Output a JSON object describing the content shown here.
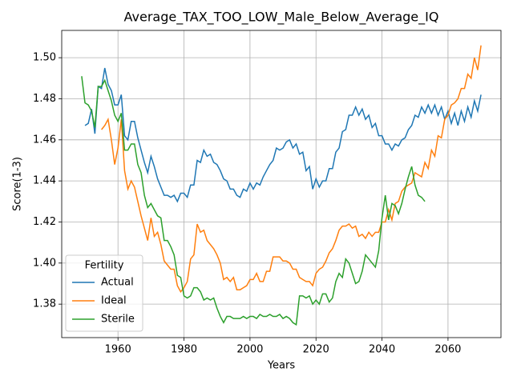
{
  "chart_data": {
    "type": "line",
    "title": "Average_TAX_TOO_LOW_Male_Below_Average_IQ",
    "x_label": "Years",
    "y_label": "Score(1-3)",
    "xlim": [
      1942.95,
      2076.05
    ],
    "ylim": [
      1.3637,
      1.5133
    ],
    "xticks": [
      1960,
      1980,
      2000,
      2020,
      2040,
      2060
    ],
    "yticks": [
      1.38,
      {
        "value": 1.4,
        "label": "1.40"
      },
      1.42,
      1.44,
      1.46,
      1.48,
      {
        "value": 1.5,
        "label": "1.50"
      }
    ],
    "grid": true,
    "legend_title": "Fertility",
    "legend_position": "lower left",
    "series": [
      {
        "name": "Actual",
        "color": "#1f77b4",
        "x": [
          1950,
          1951,
          1952,
          1953,
          1954,
          1955,
          1956,
          1957,
          1958,
          1959,
          1960,
          1961,
          1962,
          1963,
          1964,
          1965,
          1966,
          1967,
          1968,
          1969,
          1970,
          1971,
          1972,
          1973,
          1974,
          1975,
          1976,
          1977,
          1978,
          1979,
          1980,
          1981,
          1982,
          1983,
          1984,
          1985,
          1986,
          1987,
          1988,
          1989,
          1990,
          1991,
          1992,
          1993,
          1994,
          1995,
          1996,
          1997,
          1998,
          1999,
          2000,
          2001,
          2002,
          2003,
          2004,
          2005,
          2006,
          2007,
          2008,
          2009,
          2010,
          2011,
          2012,
          2013,
          2014,
          2015,
          2016,
          2017,
          2018,
          2019,
          2020,
          2021,
          2022,
          2023,
          2024,
          2025,
          2026,
          2027,
          2028,
          2029,
          2030,
          2031,
          2032,
          2033,
          2034,
          2035,
          2036,
          2037,
          2038,
          2039,
          2040,
          2041,
          2042,
          2043,
          2044,
          2045,
          2046,
          2047,
          2048,
          2049,
          2050,
          2051,
          2052,
          2053,
          2054,
          2055,
          2056,
          2057,
          2058,
          2059,
          2060,
          2061,
          2062,
          2063,
          2064,
          2065,
          2066,
          2067,
          2068,
          2069,
          2070
        ],
        "values": [
          1.467,
          1.468,
          1.475,
          1.463,
          1.486,
          1.485,
          1.495,
          1.487,
          1.484,
          1.477,
          1.477,
          1.482,
          1.462,
          1.46,
          1.469,
          1.469,
          1.461,
          1.455,
          1.449,
          1.444,
          1.452,
          1.447,
          1.441,
          1.437,
          1.433,
          1.433,
          1.432,
          1.433,
          1.43,
          1.434,
          1.434,
          1.432,
          1.438,
          1.438,
          1.45,
          1.449,
          1.455,
          1.452,
          1.453,
          1.449,
          1.448,
          1.445,
          1.441,
          1.44,
          1.436,
          1.436,
          1.433,
          1.432,
          1.436,
          1.435,
          1.439,
          1.436,
          1.439,
          1.438,
          1.442,
          1.445,
          1.448,
          1.45,
          1.456,
          1.455,
          1.456,
          1.459,
          1.46,
          1.456,
          1.458,
          1.453,
          1.454,
          1.445,
          1.447,
          1.436,
          1.441,
          1.437,
          1.44,
          1.44,
          1.446,
          1.446,
          1.454,
          1.456,
          1.464,
          1.465,
          1.472,
          1.472,
          1.476,
          1.472,
          1.475,
          1.47,
          1.472,
          1.466,
          1.468,
          1.462,
          1.462,
          1.458,
          1.458,
          1.455,
          1.458,
          1.457,
          1.46,
          1.461,
          1.465,
          1.467,
          1.472,
          1.471,
          1.476,
          1.473,
          1.477,
          1.473,
          1.477,
          1.472,
          1.476,
          1.47,
          1.474,
          1.468,
          1.473,
          1.467,
          1.474,
          1.469,
          1.476,
          1.471,
          1.479,
          1.474,
          1.482
        ]
      },
      {
        "name": "Ideal",
        "color": "#ff7f0e",
        "x": [
          1955,
          1956,
          1957,
          1958,
          1959,
          1960,
          1961,
          1962,
          1963,
          1964,
          1965,
          1966,
          1967,
          1968,
          1969,
          1970,
          1971,
          1972,
          1973,
          1974,
          1975,
          1976,
          1977,
          1978,
          1979,
          1980,
          1981,
          1982,
          1983,
          1984,
          1985,
          1986,
          1987,
          1988,
          1989,
          1990,
          1991,
          1992,
          1993,
          1994,
          1995,
          1996,
          1997,
          1998,
          1999,
          2000,
          2001,
          2002,
          2003,
          2004,
          2005,
          2006,
          2007,
          2008,
          2009,
          2010,
          2011,
          2012,
          2013,
          2014,
          2015,
          2016,
          2017,
          2018,
          2019,
          2020,
          2021,
          2022,
          2023,
          2024,
          2025,
          2026,
          2027,
          2028,
          2029,
          2030,
          2031,
          2032,
          2033,
          2034,
          2035,
          2036,
          2037,
          2038,
          2039,
          2040,
          2041,
          2042,
          2043,
          2044,
          2045,
          2046,
          2047,
          2048,
          2049,
          2050,
          2051,
          2052,
          2053,
          2054,
          2055,
          2056,
          2057,
          2058,
          2059,
          2060,
          2061,
          2062,
          2063,
          2064,
          2065,
          2066,
          2067,
          2068,
          2069,
          2070
        ],
        "values": [
          1.465,
          1.467,
          1.47,
          1.46,
          1.448,
          1.456,
          1.47,
          1.445,
          1.436,
          1.44,
          1.437,
          1.43,
          1.423,
          1.417,
          1.411,
          1.422,
          1.413,
          1.415,
          1.409,
          1.401,
          1.399,
          1.397,
          1.397,
          1.389,
          1.386,
          1.388,
          1.391,
          1.402,
          1.404,
          1.419,
          1.415,
          1.416,
          1.411,
          1.409,
          1.407,
          1.404,
          1.4,
          1.392,
          1.393,
          1.391,
          1.393,
          1.387,
          1.387,
          1.388,
          1.389,
          1.392,
          1.392,
          1.395,
          1.391,
          1.391,
          1.396,
          1.396,
          1.403,
          1.403,
          1.403,
          1.401,
          1.401,
          1.4,
          1.397,
          1.397,
          1.393,
          1.392,
          1.391,
          1.391,
          1.389,
          1.395,
          1.397,
          1.398,
          1.401,
          1.405,
          1.407,
          1.411,
          1.416,
          1.418,
          1.418,
          1.419,
          1.417,
          1.418,
          1.413,
          1.414,
          1.412,
          1.415,
          1.413,
          1.415,
          1.415,
          1.42,
          1.42,
          1.426,
          1.421,
          1.429,
          1.43,
          1.435,
          1.437,
          1.438,
          1.439,
          1.444,
          1.443,
          1.442,
          1.449,
          1.446,
          1.455,
          1.452,
          1.462,
          1.461,
          1.47,
          1.472,
          1.477,
          1.478,
          1.48,
          1.485,
          1.485,
          1.492,
          1.49,
          1.5,
          1.494,
          1.506
        ]
      },
      {
        "name": "Sterile",
        "color": "#2ca02c",
        "x": [
          1949,
          1950,
          1951,
          1952,
          1953,
          1954,
          1955,
          1956,
          1957,
          1958,
          1959,
          1960,
          1961,
          1962,
          1963,
          1964,
          1965,
          1966,
          1967,
          1968,
          1969,
          1970,
          1971,
          1972,
          1973,
          1974,
          1975,
          1976,
          1977,
          1978,
          1979,
          1980,
          1981,
          1982,
          1983,
          1984,
          1985,
          1986,
          1987,
          1988,
          1989,
          1990,
          1991,
          1992,
          1993,
          1994,
          1995,
          1996,
          1997,
          1998,
          1999,
          2000,
          2001,
          2002,
          2003,
          2004,
          2005,
          2006,
          2007,
          2008,
          2009,
          2010,
          2011,
          2012,
          2013,
          2014,
          2015,
          2016,
          2017,
          2018,
          2019,
          2020,
          2021,
          2022,
          2023,
          2024,
          2025,
          2026,
          2027,
          2028,
          2029,
          2030,
          2031,
          2032,
          2033,
          2034,
          2035,
          2036,
          2037,
          2038,
          2039,
          2040,
          2041,
          2042,
          2043,
          2044,
          2045,
          2046,
          2047,
          2048,
          2049,
          2050,
          2051,
          2052,
          2053
        ],
        "values": [
          1.491,
          1.478,
          1.477,
          1.474,
          1.466,
          1.486,
          1.486,
          1.489,
          1.484,
          1.479,
          1.472,
          1.469,
          1.473,
          1.455,
          1.455,
          1.458,
          1.458,
          1.448,
          1.444,
          1.433,
          1.427,
          1.429,
          1.426,
          1.423,
          1.422,
          1.411,
          1.411,
          1.408,
          1.404,
          1.394,
          1.393,
          1.384,
          1.383,
          1.384,
          1.388,
          1.388,
          1.386,
          1.382,
          1.383,
          1.382,
          1.383,
          1.378,
          1.374,
          1.371,
          1.374,
          1.374,
          1.373,
          1.373,
          1.373,
          1.374,
          1.373,
          1.374,
          1.374,
          1.373,
          1.375,
          1.374,
          1.374,
          1.375,
          1.374,
          1.374,
          1.375,
          1.373,
          1.374,
          1.373,
          1.371,
          1.37,
          1.384,
          1.384,
          1.383,
          1.384,
          1.38,
          1.382,
          1.38,
          1.385,
          1.385,
          1.381,
          1.383,
          1.391,
          1.395,
          1.393,
          1.402,
          1.4,
          1.395,
          1.39,
          1.391,
          1.396,
          1.404,
          1.402,
          1.4,
          1.398,
          1.406,
          1.422,
          1.433,
          1.421,
          1.429,
          1.428,
          1.424,
          1.429,
          1.436,
          1.442,
          1.447,
          1.438,
          1.433,
          1.432,
          1.43
        ]
      }
    ]
  }
}
